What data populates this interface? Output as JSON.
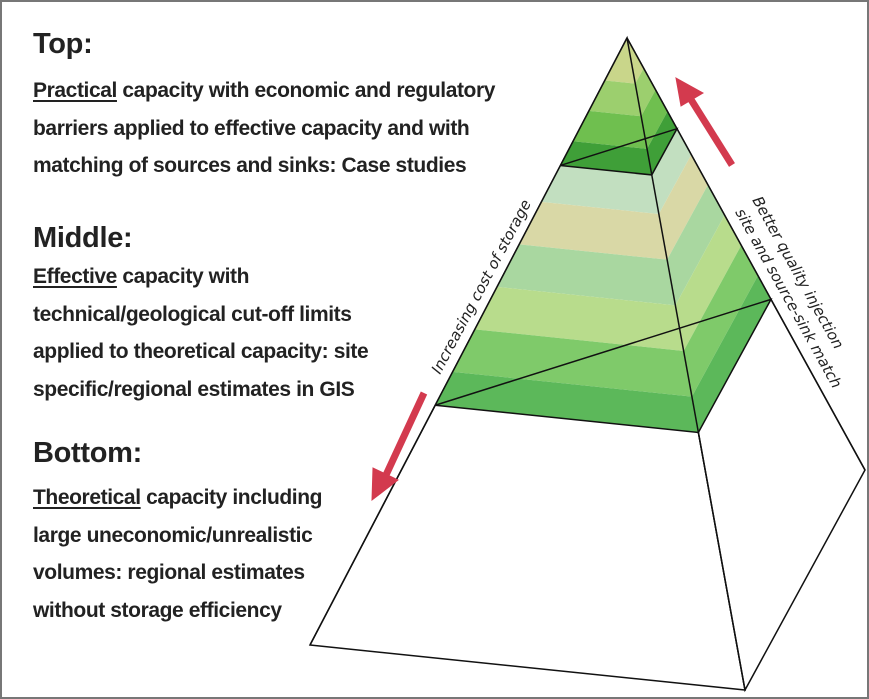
{
  "levels": [
    {
      "heading": "Top:",
      "keyword": "Practical",
      "lines": [
        "capacity with economic and regulatory",
        "barriers applied to effective capacity and with",
        "matching of sources and sinks: Case studies"
      ]
    },
    {
      "heading": "Middle:",
      "keyword": "Effective",
      "lines": [
        "capacity with",
        "technical/geological cut-off limits",
        "applied to theoretical capacity: site",
        "specific/regional estimates in GIS"
      ]
    },
    {
      "heading": "Bottom:",
      "keyword": "Theoretical",
      "lines": [
        "capacity including",
        "large uneconomic/unrealistic",
        "volumes: regional estimates",
        "without storage efficiency"
      ]
    }
  ],
  "left_arrow_label": "Increasing cost of storage",
  "right_arrow_label": [
    "Better quality injection",
    "site and source-sink match"
  ]
}
